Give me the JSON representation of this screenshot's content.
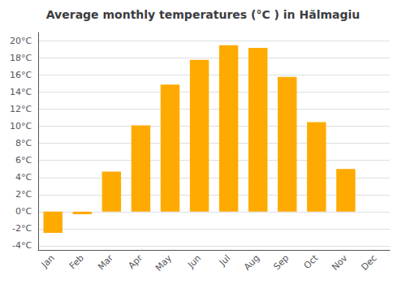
{
  "chart_data": {
    "type": "bar",
    "title": "Average monthly temperatures (°C ) in Hălmagiu",
    "categories": [
      "Jan",
      "Feb",
      "Mar",
      "Apr",
      "May",
      "Jun",
      "Jul",
      "Aug",
      "Sep",
      "Oct",
      "Nov",
      "Dec"
    ],
    "values": [
      -2.5,
      -0.3,
      4.7,
      10.1,
      14.9,
      17.8,
      19.5,
      19.2,
      15.8,
      10.5,
      5.0,
      0.0
    ],
    "color": "#FFAA00",
    "ylim": [
      -4.5,
      21.0
    ],
    "yticks": [
      {
        "value": -4,
        "label": "-4°C"
      },
      {
        "value": -2,
        "label": "-2°C"
      },
      {
        "value": 0,
        "label": "0°C"
      },
      {
        "value": 2,
        "label": "2°C"
      },
      {
        "value": 4,
        "label": "4°C"
      },
      {
        "value": 6,
        "label": "6°C"
      },
      {
        "value": 8,
        "label": "8°C"
      },
      {
        "value": 10,
        "label": "10°C"
      },
      {
        "value": 12,
        "label": "12°C"
      },
      {
        "value": 14,
        "label": "14°C"
      },
      {
        "value": 16,
        "label": "16°C"
      },
      {
        "value": 18,
        "label": "18°C"
      },
      {
        "value": 20,
        "label": "20°C"
      }
    ],
    "grid": true
  }
}
